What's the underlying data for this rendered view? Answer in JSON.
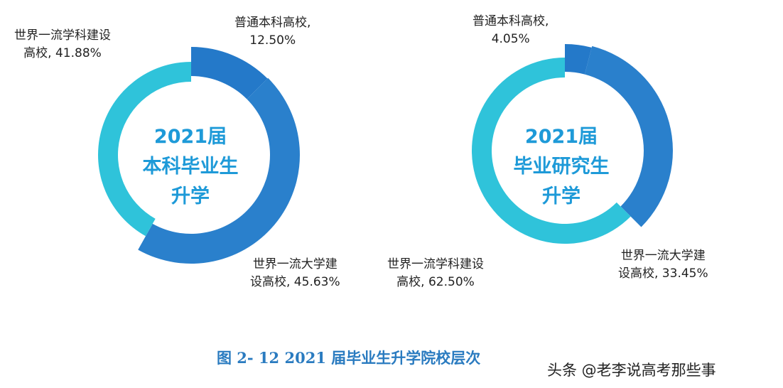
{
  "chart_data": [
    {
      "type": "pie",
      "donut": true,
      "center_title": [
        "2021届",
        "本科毕业生",
        "升学"
      ],
      "slices": [
        {
          "label": "普通本科高校",
          "value": 12.5,
          "color": "#2479c9"
        },
        {
          "label": "世界一流大学建设高校",
          "value": 45.63,
          "color": "#2a80cc"
        },
        {
          "label": "世界一流学科建设高校",
          "value": 41.88,
          "color": "#2fc3da"
        }
      ],
      "slice_labels": [
        [
          "普通本科高校,",
          "12.50%"
        ],
        [
          "世界一流大学建",
          "设高校, 45.63%"
        ],
        [
          "世界一流学科建设",
          "高校, 41.88%"
        ]
      ]
    },
    {
      "type": "pie",
      "donut": true,
      "center_title": [
        "2021届",
        "毕业研究生",
        "升学"
      ],
      "slices": [
        {
          "label": "普通本科高校",
          "value": 4.05,
          "color": "#2479c9"
        },
        {
          "label": "世界一流大学建设高校",
          "value": 33.45,
          "color": "#2a80cc"
        },
        {
          "label": "世界一流学科建设高校",
          "value": 62.5,
          "color": "#2fc3da"
        }
      ],
      "slice_labels": [
        [
          "普通本科高校,",
          "4.05%"
        ],
        [
          "世界一流大学建",
          "设高校, 33.45%"
        ],
        [
          "世界一流学科建设",
          "高校, 62.50%"
        ]
      ]
    }
  ],
  "caption": "图 2- 12  2021 届毕业生升学院校层次",
  "watermark": "头条 @老李说高考那些事"
}
